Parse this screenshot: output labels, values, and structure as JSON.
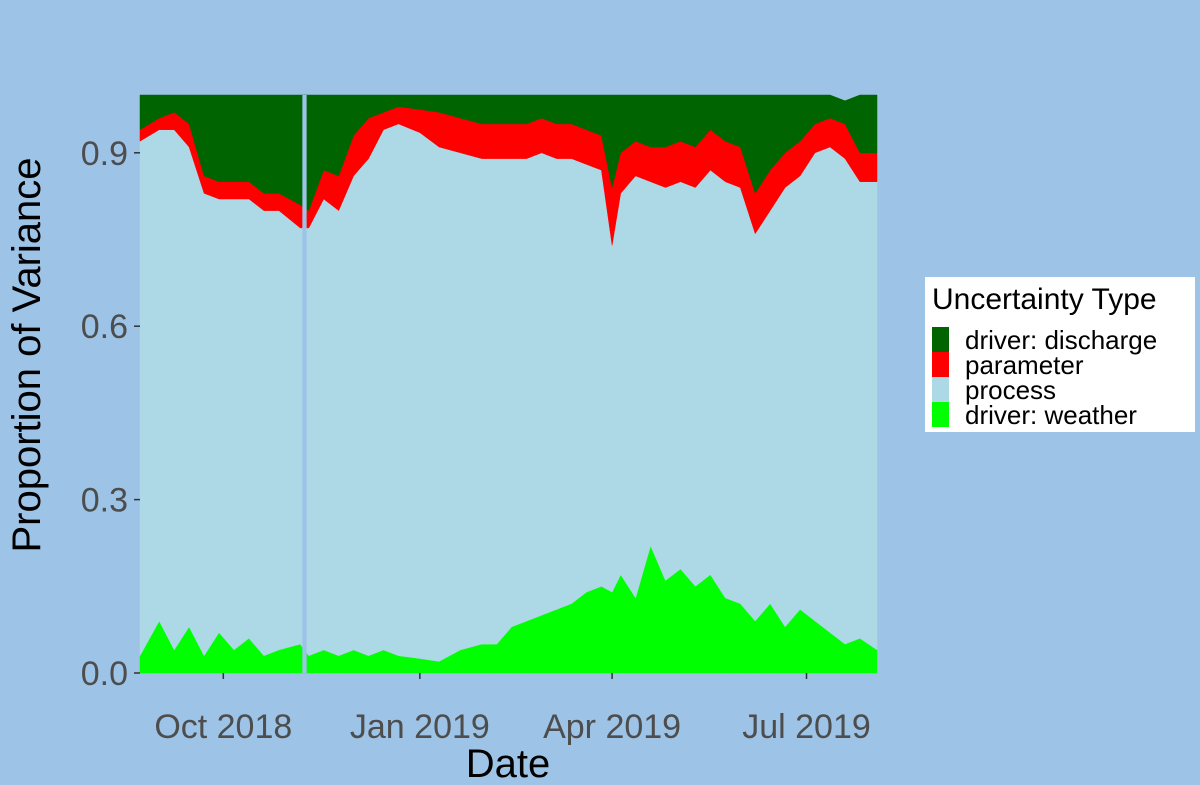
{
  "chart_data": {
    "type": "area",
    "xlabel": "Date",
    "ylabel": "Proportion of Variance",
    "xlim": [
      "2018-08-23",
      "2019-08-03"
    ],
    "ylim": [
      0,
      1
    ],
    "x_ticks": [
      {
        "date": "2018-10-01",
        "label": "Oct 2018"
      },
      {
        "date": "2019-01-01",
        "label": "Jan 2019"
      },
      {
        "date": "2019-04-01",
        "label": "Apr 2019"
      },
      {
        "date": "2019-07-01",
        "label": "Jul 2019"
      }
    ],
    "y_ticks": [
      {
        "value": 0.0,
        "label": "0.0"
      },
      {
        "value": 0.3,
        "label": "0.3"
      },
      {
        "value": 0.6,
        "label": "0.6"
      },
      {
        "value": 0.9,
        "label": "0.9"
      }
    ],
    "grid": false,
    "legend": {
      "title": "Uncertainty Type",
      "position": "right",
      "entries": [
        {
          "label": "driver: discharge",
          "color": "#006400"
        },
        {
          "label": "parameter",
          "color": "#ff0000"
        },
        {
          "label": "process",
          "color": "#add8e6"
        },
        {
          "label": "driver: weather",
          "color": "#00ff00"
        }
      ]
    },
    "stack_order_bottom_to_top": [
      "driver: weather",
      "process",
      "parameter",
      "driver: discharge"
    ],
    "gap": {
      "start": "2018-11-07",
      "end": "2018-11-09"
    },
    "x": [
      "2018-08-23",
      "2018-09-01",
      "2018-09-08",
      "2018-09-15",
      "2018-09-22",
      "2018-09-29",
      "2018-10-06",
      "2018-10-13",
      "2018-10-20",
      "2018-10-27",
      "2018-11-06",
      "2018-11-10",
      "2018-11-17",
      "2018-11-24",
      "2018-12-01",
      "2018-12-08",
      "2018-12-15",
      "2018-12-22",
      "2019-01-01",
      "2019-01-10",
      "2019-01-20",
      "2019-01-30",
      "2019-02-06",
      "2019-02-13",
      "2019-02-20",
      "2019-02-27",
      "2019-03-06",
      "2019-03-13",
      "2019-03-20",
      "2019-03-27",
      "2019-04-01",
      "2019-04-05",
      "2019-04-12",
      "2019-04-19",
      "2019-04-26",
      "2019-05-03",
      "2019-05-10",
      "2019-05-17",
      "2019-05-24",
      "2019-05-31",
      "2019-06-07",
      "2019-06-14",
      "2019-06-21",
      "2019-06-28",
      "2019-07-05",
      "2019-07-12",
      "2019-07-19",
      "2019-07-26",
      "2019-08-03"
    ],
    "series": [
      {
        "name": "driver: weather",
        "values": [
          0.03,
          0.09,
          0.04,
          0.08,
          0.03,
          0.07,
          0.04,
          0.06,
          0.03,
          0.04,
          0.05,
          0.03,
          0.04,
          0.03,
          0.04,
          0.03,
          0.04,
          0.03,
          0.025,
          0.02,
          0.04,
          0.05,
          0.05,
          0.08,
          0.09,
          0.1,
          0.11,
          0.12,
          0.14,
          0.15,
          0.14,
          0.17,
          0.13,
          0.22,
          0.16,
          0.18,
          0.15,
          0.17,
          0.13,
          0.12,
          0.09,
          0.12,
          0.08,
          0.11,
          0.09,
          0.07,
          0.05,
          0.06,
          0.04
        ]
      },
      {
        "name": "process",
        "values": [
          0.89,
          0.85,
          0.9,
          0.83,
          0.8,
          0.75,
          0.78,
          0.76,
          0.77,
          0.76,
          0.72,
          0.74,
          0.78,
          0.77,
          0.82,
          0.86,
          0.9,
          0.92,
          0.91,
          0.89,
          0.86,
          0.84,
          0.84,
          0.81,
          0.8,
          0.8,
          0.78,
          0.77,
          0.74,
          0.72,
          0.6,
          0.66,
          0.73,
          0.63,
          0.68,
          0.67,
          0.69,
          0.7,
          0.72,
          0.72,
          0.67,
          0.68,
          0.76,
          0.75,
          0.81,
          0.84,
          0.84,
          0.79,
          0.81
        ]
      },
      {
        "name": "parameter",
        "values": [
          0.02,
          0.02,
          0.03,
          0.04,
          0.03,
          0.03,
          0.03,
          0.03,
          0.03,
          0.03,
          0.04,
          0.03,
          0.05,
          0.06,
          0.07,
          0.07,
          0.03,
          0.03,
          0.04,
          0.06,
          0.06,
          0.06,
          0.06,
          0.06,
          0.06,
          0.06,
          0.06,
          0.06,
          0.06,
          0.06,
          0.1,
          0.07,
          0.06,
          0.06,
          0.07,
          0.07,
          0.07,
          0.07,
          0.07,
          0.07,
          0.07,
          0.07,
          0.06,
          0.06,
          0.05,
          0.05,
          0.06,
          0.05,
          0.05
        ]
      },
      {
        "name": "driver: discharge",
        "values": [
          0.06,
          0.04,
          0.03,
          0.05,
          0.14,
          0.15,
          0.15,
          0.15,
          0.17,
          0.17,
          0.19,
          0.2,
          0.13,
          0.14,
          0.07,
          0.04,
          0.03,
          0.02,
          0.025,
          0.03,
          0.04,
          0.05,
          0.05,
          0.05,
          0.05,
          0.04,
          0.05,
          0.05,
          0.06,
          0.07,
          0.16,
          0.1,
          0.08,
          0.09,
          0.09,
          0.08,
          0.09,
          0.06,
          0.08,
          0.09,
          0.17,
          0.13,
          0.1,
          0.08,
          0.05,
          0.04,
          0.04,
          0.1,
          0.1
        ]
      }
    ]
  }
}
